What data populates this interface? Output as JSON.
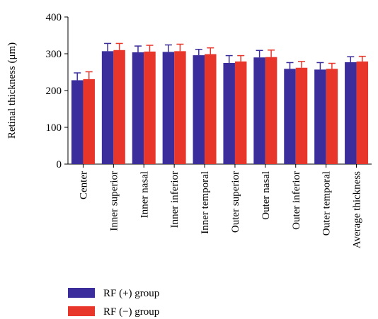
{
  "chart_data": {
    "type": "bar",
    "ylabel": "Retinal thickness (μm)",
    "ylim": [
      0,
      400
    ],
    "yticks": [
      0,
      100,
      200,
      300,
      400
    ],
    "categories": [
      "Center",
      "Inner superior",
      "Inner nasal",
      "Inner inferior",
      "Inner temporal",
      "Outer superior",
      "Outer nasal",
      "Outer inferior",
      "Outer temporal",
      "Average thickness"
    ],
    "series": [
      {
        "name": "RF (+) group",
        "color": "#3b2d9b",
        "values": [
          228,
          307,
          304,
          305,
          296,
          275,
          290,
          259,
          257,
          277
        ],
        "errors": [
          20,
          21,
          17,
          19,
          16,
          20,
          19,
          17,
          19,
          15
        ]
      },
      {
        "name": "RF (−) group",
        "color": "#e8362a",
        "values": [
          231,
          310,
          306,
          307,
          299,
          279,
          291,
          262,
          259,
          279
        ],
        "errors": [
          20,
          18,
          17,
          19,
          17,
          16,
          19,
          17,
          15,
          14
        ]
      }
    ],
    "legend_position": "bottom-left",
    "grid": false
  }
}
